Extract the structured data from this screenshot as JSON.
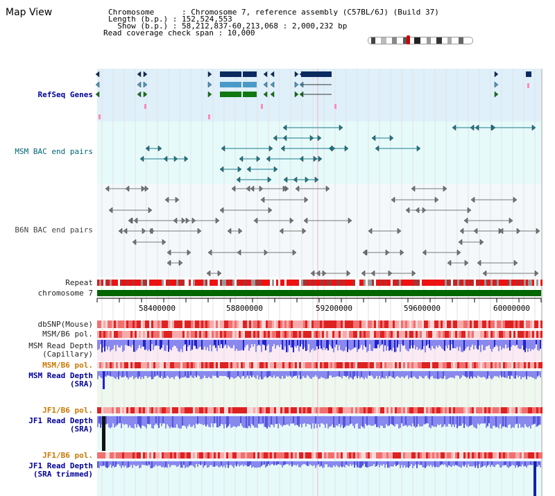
{
  "app": {
    "title": "Map View"
  },
  "header": {
    "lines": [
      "Chromosome      : Chromosome 7, reference assembly (C57BL/6J) (Build 37)",
      "Length (b.p.) : 152,524,553",
      "  Show (b.p.) : 58,212,837-60,213,068 : 2,000,232 bp",
      "Read coverage check span : 10,000"
    ]
  },
  "tracks": {
    "refseq": "RefSeq Genes",
    "msm_bac": "MSM BAC end pairs",
    "b6n_bac": "B6N BAC end pairs",
    "repeat": "Repeat",
    "chromosome": "chromosome 7",
    "dbsnp": "dbSNP(Mouse)",
    "msm_b6_pol_1": "MSM/B6 pol.",
    "msm_read_depth_cap": "MSM Read Depth\n(Capillary)",
    "msm_b6_pol_2": "MSM/B6 pol.",
    "msm_read_depth_sra": "MSM Read Depth\n(SRA)",
    "jf1_b6_pol_1": "JF1/B6 pol.",
    "jf1_read_depth_sra": "JF1 Read Depth\n(SRA)",
    "jf1_b6_pol_2": "JF1/B6 pol.",
    "jf1_read_depth_trim": "JF1 Read Depth\n(SRA trimmed)"
  },
  "axis": {
    "ticks": [
      "58400000",
      "58800000",
      "59200000",
      "59600000",
      "60000000"
    ]
  },
  "colors": {
    "refseq_bg": "#dff0fa",
    "msm_bac_bg": "#e6fafa",
    "b6n_bac_bg": "#f4f8fb",
    "chromosome": "#006600",
    "depth_blue": "#2222cc",
    "depth_light": "#8888ee",
    "pol_red": "#dd2222",
    "pink_bg": "#fbeaf3",
    "green_bg": "#eef8ee"
  }
}
